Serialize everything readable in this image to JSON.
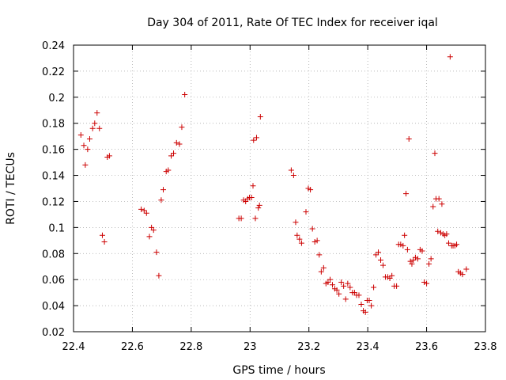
{
  "chart_data": {
    "type": "scatter",
    "title": "Day 304 of 2011, Rate Of TEC Index for receiver iqal",
    "xlabel": "GPS time / hours",
    "ylabel": "ROTI / TECUs",
    "xlim": [
      22.4,
      23.8
    ],
    "ylim": [
      0.02,
      0.24
    ],
    "xticks": [
      "22.4",
      "22.6",
      "22.8",
      "23",
      "23.2",
      "23.4",
      "23.6",
      "23.8"
    ],
    "yticks": [
      "0.02",
      "0.04",
      "0.06",
      "0.08",
      "0.1",
      "0.12",
      "0.14",
      "0.16",
      "0.18",
      "0.2",
      "0.22",
      "0.24"
    ],
    "grid": true,
    "marker": "+",
    "series": [
      {
        "name": "ROTI",
        "color": "#cc0000",
        "points": [
          [
            22.425,
            0.171
          ],
          [
            22.435,
            0.163
          ],
          [
            22.44,
            0.148
          ],
          [
            22.448,
            0.16
          ],
          [
            22.455,
            0.168
          ],
          [
            22.465,
            0.176
          ],
          [
            22.472,
            0.18
          ],
          [
            22.48,
            0.188
          ],
          [
            22.488,
            0.176
          ],
          [
            22.498,
            0.094
          ],
          [
            22.505,
            0.089
          ],
          [
            22.515,
            0.154
          ],
          [
            22.522,
            0.155
          ],
          [
            22.63,
            0.114
          ],
          [
            22.64,
            0.113
          ],
          [
            22.648,
            0.111
          ],
          [
            22.658,
            0.093
          ],
          [
            22.665,
            0.1
          ],
          [
            22.672,
            0.098
          ],
          [
            22.682,
            0.081
          ],
          [
            22.69,
            0.063
          ],
          [
            22.698,
            0.121
          ],
          [
            22.705,
            0.129
          ],
          [
            22.715,
            0.143
          ],
          [
            22.722,
            0.144
          ],
          [
            22.732,
            0.155
          ],
          [
            22.74,
            0.157
          ],
          [
            22.75,
            0.165
          ],
          [
            22.76,
            0.164
          ],
          [
            22.768,
            0.177
          ],
          [
            22.778,
            0.202
          ],
          [
            22.962,
            0.107
          ],
          [
            22.97,
            0.107
          ],
          [
            22.978,
            0.121
          ],
          [
            22.985,
            0.12
          ],
          [
            22.992,
            0.122
          ],
          [
            22.998,
            0.123
          ],
          [
            23.005,
            0.123
          ],
          [
            23.01,
            0.132
          ],
          [
            23.012,
            0.167
          ],
          [
            23.018,
            0.107
          ],
          [
            23.022,
            0.169
          ],
          [
            23.028,
            0.115
          ],
          [
            23.032,
            0.117
          ],
          [
            23.035,
            0.185
          ],
          [
            23.14,
            0.144
          ],
          [
            23.148,
            0.14
          ],
          [
            23.155,
            0.104
          ],
          [
            23.16,
            0.094
          ],
          [
            23.168,
            0.091
          ],
          [
            23.175,
            0.088
          ],
          [
            23.19,
            0.112
          ],
          [
            23.198,
            0.13
          ],
          [
            23.205,
            0.129
          ],
          [
            23.212,
            0.099
          ],
          [
            23.22,
            0.089
          ],
          [
            23.228,
            0.09
          ],
          [
            23.235,
            0.079
          ],
          [
            23.242,
            0.066
          ],
          [
            23.25,
            0.069
          ],
          [
            23.258,
            0.057
          ],
          [
            23.265,
            0.058
          ],
          [
            23.272,
            0.06
          ],
          [
            23.28,
            0.056
          ],
          [
            23.288,
            0.053
          ],
          [
            23.295,
            0.052
          ],
          [
            23.302,
            0.049
          ],
          [
            23.31,
            0.058
          ],
          [
            23.318,
            0.055
          ],
          [
            23.325,
            0.045
          ],
          [
            23.332,
            0.057
          ],
          [
            23.34,
            0.054
          ],
          [
            23.348,
            0.05
          ],
          [
            23.355,
            0.05
          ],
          [
            23.362,
            0.048
          ],
          [
            23.37,
            0.048
          ],
          [
            23.378,
            0.041
          ],
          [
            23.385,
            0.036
          ],
          [
            23.392,
            0.035
          ],
          [
            23.398,
            0.044
          ],
          [
            23.405,
            0.044
          ],
          [
            23.412,
            0.04
          ],
          [
            23.42,
            0.054
          ],
          [
            23.428,
            0.079
          ],
          [
            23.436,
            0.081
          ],
          [
            23.444,
            0.075
          ],
          [
            23.452,
            0.071
          ],
          [
            23.46,
            0.062
          ],
          [
            23.468,
            0.062
          ],
          [
            23.475,
            0.061
          ],
          [
            23.482,
            0.063
          ],
          [
            23.49,
            0.055
          ],
          [
            23.498,
            0.055
          ],
          [
            23.505,
            0.087
          ],
          [
            23.512,
            0.087
          ],
          [
            23.52,
            0.086
          ],
          [
            23.525,
            0.094
          ],
          [
            23.53,
            0.126
          ],
          [
            23.535,
            0.083
          ],
          [
            23.54,
            0.168
          ],
          [
            23.545,
            0.074
          ],
          [
            23.55,
            0.072
          ],
          [
            23.555,
            0.075
          ],
          [
            23.562,
            0.077
          ],
          [
            23.57,
            0.076
          ],
          [
            23.578,
            0.083
          ],
          [
            23.585,
            0.082
          ],
          [
            23.592,
            0.058
          ],
          [
            23.6,
            0.057
          ],
          [
            23.608,
            0.072
          ],
          [
            23.615,
            0.076
          ],
          [
            23.622,
            0.116
          ],
          [
            23.628,
            0.157
          ],
          [
            23.632,
            0.122
          ],
          [
            23.638,
            0.097
          ],
          [
            23.642,
            0.122
          ],
          [
            23.648,
            0.096
          ],
          [
            23.652,
            0.118
          ],
          [
            23.656,
            0.095
          ],
          [
            23.662,
            0.094
          ],
          [
            23.668,
            0.095
          ],
          [
            23.675,
            0.088
          ],
          [
            23.68,
            0.231
          ],
          [
            23.685,
            0.086
          ],
          [
            23.69,
            0.086
          ],
          [
            23.696,
            0.086
          ],
          [
            23.702,
            0.087
          ],
          [
            23.708,
            0.066
          ],
          [
            23.715,
            0.065
          ],
          [
            23.722,
            0.064
          ],
          [
            23.735,
            0.068
          ]
        ]
      }
    ]
  }
}
